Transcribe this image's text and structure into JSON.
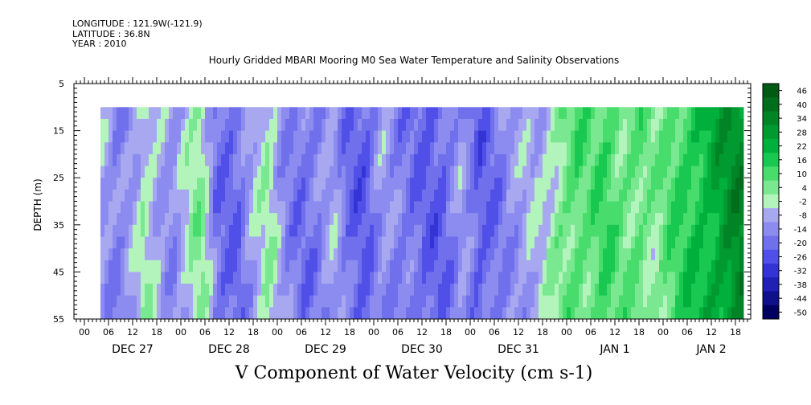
{
  "header": {
    "longitude": "LONGITUDE : 121.9W(-121.9)",
    "latitude": "LATITUDE : 36.8N",
    "year": "YEAR : 2010"
  },
  "chart_data": {
    "type": "heatmap",
    "title": "Hourly Gridded MBARI Mooring M0 Sea Water Temperature and Salinity Observations",
    "xlabel": "V Component of Water Velocity (cm s-1)",
    "ylabel": "DEPTH (m)",
    "ylim": [
      5,
      55
    ],
    "y_inverted": true,
    "y_ticks": [
      15,
      25,
      35,
      45,
      55
    ],
    "y_top_label": "5",
    "x_hour_ticks": [
      "00",
      "06",
      "12",
      "18"
    ],
    "days": [
      "DEC 27",
      "DEC 28",
      "DEC 29",
      "DEC 30",
      "DEC 31",
      "JAN  1",
      "JAN  2"
    ],
    "data_depth_range": [
      10,
      55
    ],
    "time_range_hours": [
      4,
      164
    ],
    "colorbar": {
      "labels": [
        "46",
        "40",
        "34",
        "28",
        "22",
        "16",
        "10",
        "4",
        "-2",
        "-8",
        "-14",
        "-20",
        "-26",
        "-32",
        "-38",
        "-44",
        "-50"
      ],
      "colors": [
        "#005a14",
        "#006e1c",
        "#008426",
        "#009a30",
        "#00b03c",
        "#18c850",
        "#48dc6c",
        "#7ae890",
        "#b2f4bc",
        "#a8a8f0",
        "#8c8cf0",
        "#7070ec",
        "#5050e8",
        "#3434d4",
        "#2020b4",
        "#10108c",
        "#000060"
      ]
    },
    "profile": [
      {
        "h": 4,
        "v": -6
      },
      {
        "h": 8,
        "v": -14
      },
      {
        "h": 12,
        "v": -8
      },
      {
        "h": 15,
        "v": 2
      },
      {
        "h": 18,
        "v": -4
      },
      {
        "h": 22,
        "v": -12
      },
      {
        "h": 26,
        "v": 0
      },
      {
        "h": 29,
        "v": 6
      },
      {
        "h": 33,
        "v": -16
      },
      {
        "h": 38,
        "v": -18
      },
      {
        "h": 42,
        "v": -6
      },
      {
        "h": 46,
        "v": 3
      },
      {
        "h": 50,
        "v": -12
      },
      {
        "h": 54,
        "v": -16
      },
      {
        "h": 58,
        "v": -14
      },
      {
        "h": 62,
        "v": -6
      },
      {
        "h": 66,
        "v": -18
      },
      {
        "h": 70,
        "v": -20
      },
      {
        "h": 74,
        "v": -8
      },
      {
        "h": 78,
        "v": -14
      },
      {
        "h": 82,
        "v": -16
      },
      {
        "h": 86,
        "v": -20
      },
      {
        "h": 90,
        "v": -18
      },
      {
        "h": 94,
        "v": -8
      },
      {
        "h": 98,
        "v": -20
      },
      {
        "h": 102,
        "v": -16
      },
      {
        "h": 106,
        "v": -10
      },
      {
        "h": 110,
        "v": -6
      },
      {
        "h": 114,
        "v": -4
      },
      {
        "h": 118,
        "v": 6
      },
      {
        "h": 122,
        "v": 12
      },
      {
        "h": 126,
        "v": 10
      },
      {
        "h": 130,
        "v": 14
      },
      {
        "h": 134,
        "v": 8
      },
      {
        "h": 138,
        "v": 10
      },
      {
        "h": 142,
        "v": 4
      },
      {
        "h": 146,
        "v": 12
      },
      {
        "h": 150,
        "v": 18
      },
      {
        "h": 154,
        "v": 22
      },
      {
        "h": 158,
        "v": 28
      },
      {
        "h": 162,
        "v": 34
      },
      {
        "h": 164,
        "v": 36
      }
    ]
  }
}
